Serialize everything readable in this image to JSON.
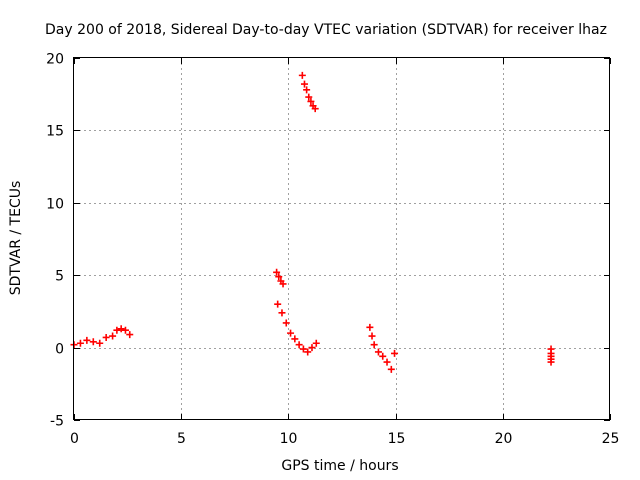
{
  "chart_data": {
    "type": "scatter",
    "title": "Day 200 of 2018, Sidereal Day-to-day VTEC variation (SDTVAR) for receiver lhaz",
    "xlabel": "GPS time / hours",
    "ylabel": "SDTVAR / TECUs",
    "xlim": [
      0,
      25
    ],
    "ylim": [
      -5,
      20
    ],
    "xticks": [
      "0",
      "5",
      "10",
      "15",
      "20",
      "25"
    ],
    "yticks": [
      "-5",
      "0",
      "5",
      "10",
      "15",
      "20"
    ],
    "grid": true,
    "marker_color": "#ff0000",
    "segments": [
      {
        "x": [
          0.0,
          0.3,
          0.6,
          0.9,
          1.2,
          1.5,
          1.8,
          2.0,
          2.2,
          2.4,
          2.6
        ],
        "y": [
          0.2,
          0.3,
          0.5,
          0.4,
          0.3,
          0.7,
          0.8,
          1.2,
          1.3,
          1.2,
          0.9
        ]
      },
      {
        "x": [
          10.65,
          10.75,
          10.85,
          10.95,
          11.05,
          11.15,
          11.25
        ],
        "y": [
          18.8,
          18.2,
          17.8,
          17.3,
          17.0,
          16.7,
          16.5
        ]
      },
      {
        "x": [
          9.45,
          9.55,
          9.65,
          9.75
        ],
        "y": [
          5.2,
          4.9,
          4.6,
          4.4
        ]
      },
      {
        "x": [
          9.5,
          9.7,
          9.9,
          10.1,
          10.3,
          10.5,
          10.7,
          10.9,
          11.1,
          11.3
        ],
        "y": [
          3.0,
          2.4,
          1.7,
          1.0,
          0.6,
          0.2,
          -0.1,
          -0.3,
          0.0,
          0.3
        ]
      },
      {
        "x": [
          13.8,
          13.9,
          14.0,
          14.2,
          14.4,
          14.6,
          14.8,
          14.95
        ],
        "y": [
          1.4,
          0.8,
          0.2,
          -0.3,
          -0.6,
          -1.0,
          -1.5,
          -0.4
        ]
      },
      {
        "x": [
          22.25,
          22.25,
          22.25,
          22.25,
          22.25
        ],
        "y": [
          -0.1,
          -0.4,
          -0.6,
          -0.8,
          -1.0
        ]
      }
    ]
  }
}
